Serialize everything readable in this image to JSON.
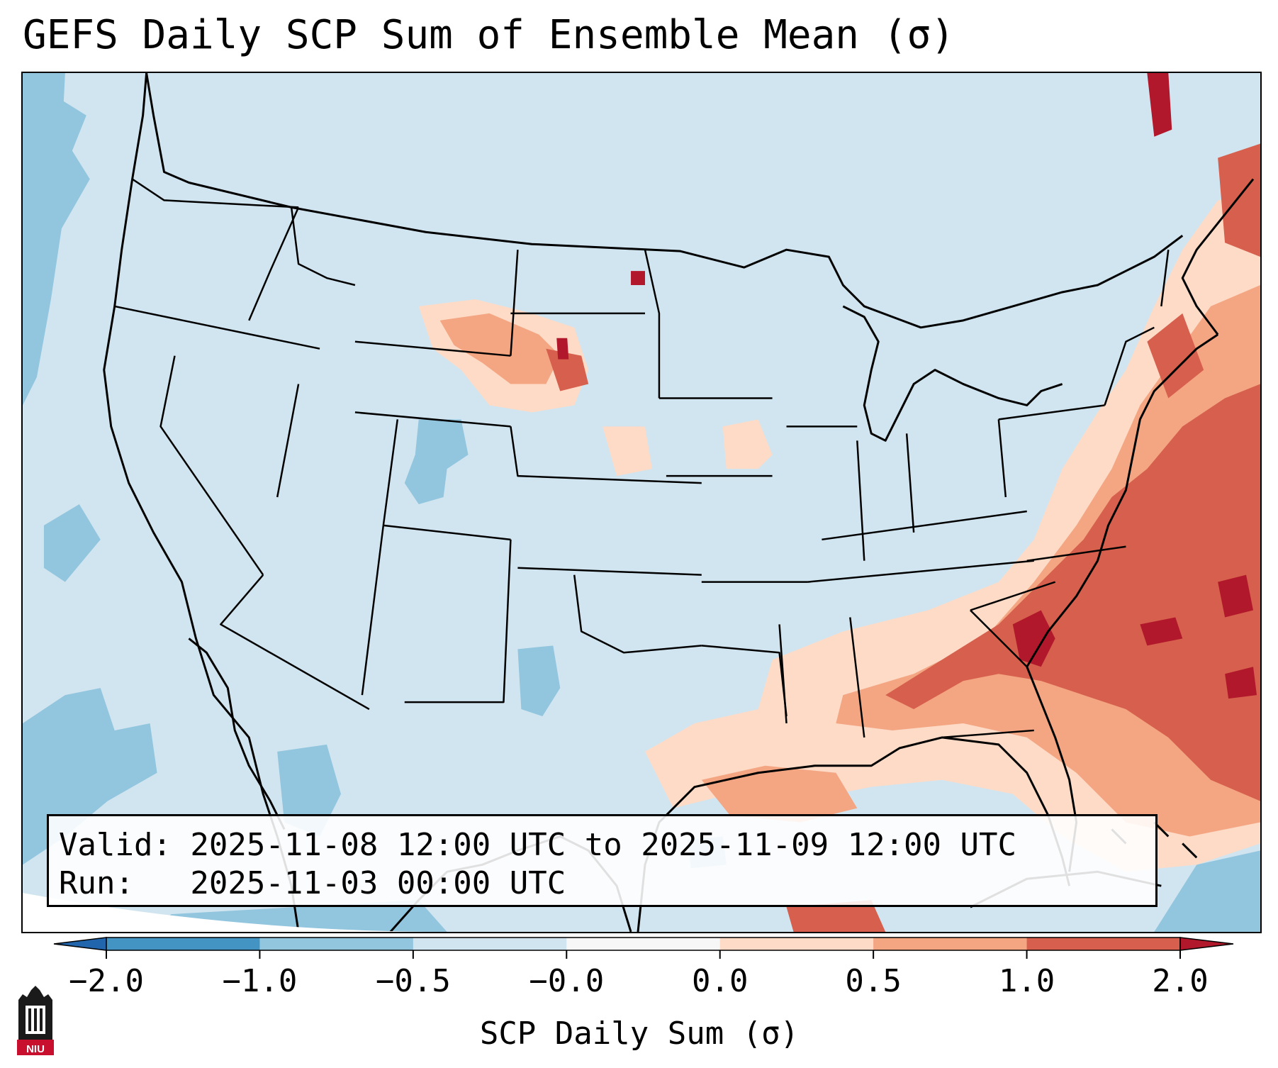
{
  "title": "GEFS Daily SCP Sum of Ensemble Mean (σ)",
  "info": {
    "valid_line": "Valid: 2025-11-08 12:00 UTC to 2025-11-09 12:00 UTC",
    "run_line": "Run:   2025-11-03 00:00 UTC"
  },
  "map": {
    "projection": "Lambert Conformal (CONUS)",
    "background_color": "#d1e5f0",
    "boundary_color": "#000000"
  },
  "colorbar": {
    "label": "SCP Daily Sum (σ)",
    "tick_labels": [
      "−2.0",
      "−1.0",
      "−0.5",
      "−0.0",
      "0.0",
      "0.5",
      "1.0",
      "2.0"
    ],
    "bins": [
      {
        "color": "#2166ac",
        "range": "< -2.0"
      },
      {
        "color": "#4393c3",
        "range": "-2.0 to -1.0"
      },
      {
        "color": "#92c5de",
        "range": "-1.0 to -0.5"
      },
      {
        "color": "#d1e5f0",
        "range": "-0.5 to -0.0"
      },
      {
        "color": "#f7f7f7",
        "range": "-0.0 to 0.0"
      },
      {
        "color": "#fddbc7",
        "range": "0.0 to 0.5"
      },
      {
        "color": "#f4a582",
        "range": "0.5 to 1.0"
      },
      {
        "color": "#d6604d",
        "range": "1.0 to 2.0"
      },
      {
        "color": "#b2182b",
        "range": "> 2.0"
      }
    ]
  },
  "logo": {
    "text": "NIU",
    "accent": "#c8102e",
    "dark": "#1a1a1a"
  }
}
